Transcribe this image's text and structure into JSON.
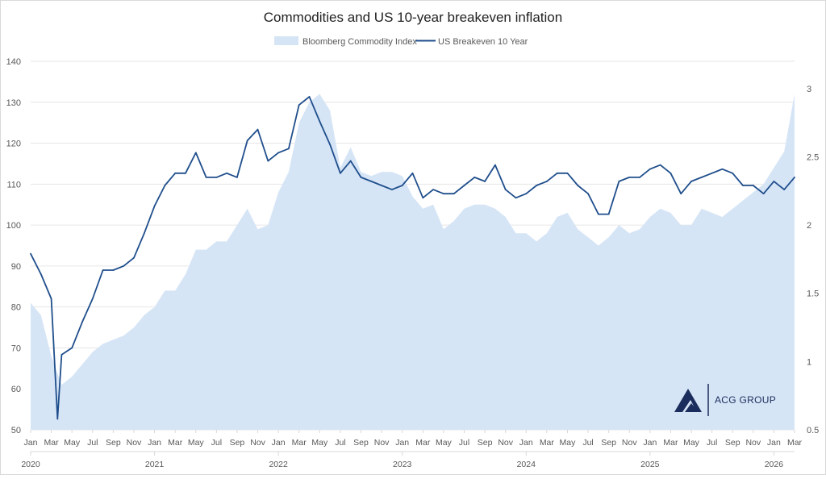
{
  "chart_data": {
    "type": "area+line",
    "title": "Commodities and US 10-year breakeven inflation",
    "legend_position": "top",
    "grid": true,
    "colors": {
      "area": "#d6e5f6",
      "line": "#1f4e8c",
      "logo": "#1b2d5c"
    },
    "left_axis": {
      "ylim": [
        50,
        140
      ],
      "ticks": [
        "50",
        "60",
        "70",
        "80",
        "90",
        "100",
        "110",
        "120",
        "130",
        "140"
      ]
    },
    "right_axis": {
      "ylim": [
        0.5,
        3.2
      ],
      "ticks": [
        "0.5",
        "1",
        "1.5",
        "2",
        "2.5",
        "3"
      ]
    },
    "x_month_labels": [
      "Jan",
      "Mar",
      "May",
      "Jul",
      "Sep",
      "Nov"
    ],
    "x_year_labels": [
      "2020",
      "2021",
      "2022",
      "2023",
      "2024",
      "2025",
      "2026"
    ],
    "series": [
      {
        "name": "Bloomberg Commodity Index",
        "type": "area",
        "axis": "left",
        "x": [
          "2020-01",
          "2020-02",
          "2020-03",
          "2020-04",
          "2020-05",
          "2020-06",
          "2020-07",
          "2020-08",
          "2020-09",
          "2020-10",
          "2020-11",
          "2020-12",
          "2021-01",
          "2021-02",
          "2021-03",
          "2021-04",
          "2021-05",
          "2021-06",
          "2021-07",
          "2021-08",
          "2021-09",
          "2021-10",
          "2021-11",
          "2021-12",
          "2022-01",
          "2022-02",
          "2022-03",
          "2022-04",
          "2022-05",
          "2022-06",
          "2022-07",
          "2022-08",
          "2022-09",
          "2022-10",
          "2022-11",
          "2022-12",
          "2023-01",
          "2023-02",
          "2023-03",
          "2023-04",
          "2023-05",
          "2023-06",
          "2023-07",
          "2023-08",
          "2023-09",
          "2023-10",
          "2023-11",
          "2023-12",
          "2024-01",
          "2024-02",
          "2024-03",
          "2024-04",
          "2024-05",
          "2024-06",
          "2024-07",
          "2024-08",
          "2024-09",
          "2024-10",
          "2024-11",
          "2024-12",
          "2025-01",
          "2025-02",
          "2025-03",
          "2025-04",
          "2025-05",
          "2025-06",
          "2025-07",
          "2025-08",
          "2025-09",
          "2025-10",
          "2025-11",
          "2025-12",
          "2026-01",
          "2026-02",
          "2026-03"
        ],
        "values": [
          81,
          78,
          68,
          61,
          63,
          66,
          69,
          71,
          72,
          73,
          75,
          78,
          80,
          84,
          84,
          88,
          94,
          94,
          96,
          96,
          100,
          104,
          99,
          100,
          108,
          113,
          125,
          130,
          132,
          128,
          114,
          119,
          113,
          112,
          113,
          113,
          112,
          107,
          104,
          105,
          99,
          101,
          104,
          105,
          105,
          104,
          102,
          98,
          98,
          96,
          98,
          102,
          103,
          99,
          97,
          95,
          97,
          100,
          98,
          99,
          102,
          104,
          103,
          100,
          100,
          104,
          103,
          102,
          104,
          106,
          108,
          110,
          114,
          118,
          132
        ]
      },
      {
        "name": "US Breakeven 10 Year",
        "type": "line",
        "axis": "right",
        "x": [
          "2020-01",
          "2020-02",
          "2020-03",
          "2020-03-19",
          "2020-04",
          "2020-05",
          "2020-06",
          "2020-07",
          "2020-08",
          "2020-09",
          "2020-10",
          "2020-11",
          "2020-12",
          "2021-01",
          "2021-02",
          "2021-03",
          "2021-04",
          "2021-05",
          "2021-06",
          "2021-07",
          "2021-08",
          "2021-09",
          "2021-10",
          "2021-11",
          "2021-12",
          "2022-01",
          "2022-02",
          "2022-03",
          "2022-04",
          "2022-05",
          "2022-06",
          "2022-07",
          "2022-08",
          "2022-09",
          "2022-10",
          "2022-11",
          "2022-12",
          "2023-01",
          "2023-02",
          "2023-03",
          "2023-04",
          "2023-05",
          "2023-06",
          "2023-07",
          "2023-08",
          "2023-09",
          "2023-10",
          "2023-11",
          "2023-12",
          "2024-01",
          "2024-02",
          "2024-03",
          "2024-04",
          "2024-05",
          "2024-06",
          "2024-07",
          "2024-08",
          "2024-09",
          "2024-10",
          "2024-11",
          "2024-12",
          "2025-01",
          "2025-02",
          "2025-03",
          "2025-04",
          "2025-05",
          "2025-06",
          "2025-07",
          "2025-08",
          "2025-09",
          "2025-10",
          "2025-11",
          "2025-12",
          "2026-01",
          "2026-02",
          "2026-03"
        ],
        "values": [
          1.79,
          1.64,
          1.46,
          0.58,
          1.05,
          1.1,
          1.29,
          1.46,
          1.67,
          1.67,
          1.7,
          1.76,
          1.94,
          2.14,
          2.29,
          2.38,
          2.38,
          2.53,
          2.35,
          2.35,
          2.38,
          2.35,
          2.62,
          2.7,
          2.47,
          2.53,
          2.56,
          2.88,
          2.94,
          2.76,
          2.59,
          2.38,
          2.47,
          2.35,
          2.32,
          2.29,
          2.26,
          2.29,
          2.38,
          2.2,
          2.26,
          2.23,
          2.23,
          2.29,
          2.35,
          2.32,
          2.44,
          2.26,
          2.2,
          2.23,
          2.29,
          2.32,
          2.38,
          2.38,
          2.29,
          2.23,
          2.08,
          2.08,
          2.32,
          2.35,
          2.35,
          2.41,
          2.44,
          2.38,
          2.23,
          2.32,
          2.35,
          2.38,
          2.41,
          2.38,
          2.29,
          2.29,
          2.23,
          2.32,
          2.26,
          2.35
        ]
      }
    ]
  },
  "logo": {
    "text": "ACG GROUP"
  }
}
